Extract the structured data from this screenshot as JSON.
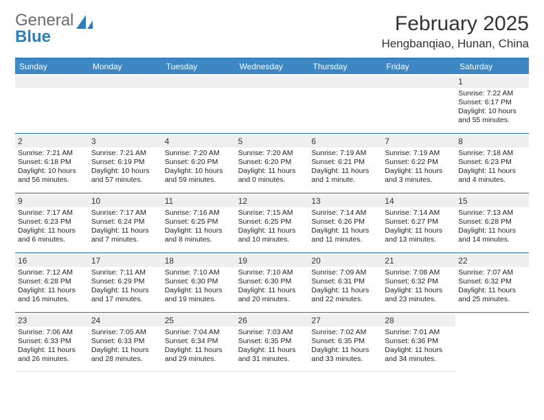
{
  "brand": {
    "name1": "General",
    "name2": "Blue"
  },
  "title": "February 2025",
  "location": "Hengbanqiao, Hunan, China",
  "colors": {
    "header_bar": "#3d87c4",
    "accent": "#2f7ebc",
    "daynum_bg": "#efefef",
    "text": "#222222"
  },
  "weekdays": [
    "Sunday",
    "Monday",
    "Tuesday",
    "Wednesday",
    "Thursday",
    "Friday",
    "Saturday"
  ],
  "calendar": {
    "first_weekday_index": 6,
    "days": [
      {
        "n": 1,
        "sunrise": "7:22 AM",
        "sunset": "6:17 PM",
        "daylight": "10 hours and 55 minutes."
      },
      {
        "n": 2,
        "sunrise": "7:21 AM",
        "sunset": "6:18 PM",
        "daylight": "10 hours and 56 minutes."
      },
      {
        "n": 3,
        "sunrise": "7:21 AM",
        "sunset": "6:19 PM",
        "daylight": "10 hours and 57 minutes."
      },
      {
        "n": 4,
        "sunrise": "7:20 AM",
        "sunset": "6:20 PM",
        "daylight": "10 hours and 59 minutes."
      },
      {
        "n": 5,
        "sunrise": "7:20 AM",
        "sunset": "6:20 PM",
        "daylight": "11 hours and 0 minutes."
      },
      {
        "n": 6,
        "sunrise": "7:19 AM",
        "sunset": "6:21 PM",
        "daylight": "11 hours and 1 minute."
      },
      {
        "n": 7,
        "sunrise": "7:19 AM",
        "sunset": "6:22 PM",
        "daylight": "11 hours and 3 minutes."
      },
      {
        "n": 8,
        "sunrise": "7:18 AM",
        "sunset": "6:23 PM",
        "daylight": "11 hours and 4 minutes."
      },
      {
        "n": 9,
        "sunrise": "7:17 AM",
        "sunset": "6:23 PM",
        "daylight": "11 hours and 6 minutes."
      },
      {
        "n": 10,
        "sunrise": "7:17 AM",
        "sunset": "6:24 PM",
        "daylight": "11 hours and 7 minutes."
      },
      {
        "n": 11,
        "sunrise": "7:16 AM",
        "sunset": "6:25 PM",
        "daylight": "11 hours and 8 minutes."
      },
      {
        "n": 12,
        "sunrise": "7:15 AM",
        "sunset": "6:25 PM",
        "daylight": "11 hours and 10 minutes."
      },
      {
        "n": 13,
        "sunrise": "7:14 AM",
        "sunset": "6:26 PM",
        "daylight": "11 hours and 11 minutes."
      },
      {
        "n": 14,
        "sunrise": "7:14 AM",
        "sunset": "6:27 PM",
        "daylight": "11 hours and 13 minutes."
      },
      {
        "n": 15,
        "sunrise": "7:13 AM",
        "sunset": "6:28 PM",
        "daylight": "11 hours and 14 minutes."
      },
      {
        "n": 16,
        "sunrise": "7:12 AM",
        "sunset": "6:28 PM",
        "daylight": "11 hours and 16 minutes."
      },
      {
        "n": 17,
        "sunrise": "7:11 AM",
        "sunset": "6:29 PM",
        "daylight": "11 hours and 17 minutes."
      },
      {
        "n": 18,
        "sunrise": "7:10 AM",
        "sunset": "6:30 PM",
        "daylight": "11 hours and 19 minutes."
      },
      {
        "n": 19,
        "sunrise": "7:10 AM",
        "sunset": "6:30 PM",
        "daylight": "11 hours and 20 minutes."
      },
      {
        "n": 20,
        "sunrise": "7:09 AM",
        "sunset": "6:31 PM",
        "daylight": "11 hours and 22 minutes."
      },
      {
        "n": 21,
        "sunrise": "7:08 AM",
        "sunset": "6:32 PM",
        "daylight": "11 hours and 23 minutes."
      },
      {
        "n": 22,
        "sunrise": "7:07 AM",
        "sunset": "6:32 PM",
        "daylight": "11 hours and 25 minutes."
      },
      {
        "n": 23,
        "sunrise": "7:06 AM",
        "sunset": "6:33 PM",
        "daylight": "11 hours and 26 minutes."
      },
      {
        "n": 24,
        "sunrise": "7:05 AM",
        "sunset": "6:33 PM",
        "daylight": "11 hours and 28 minutes."
      },
      {
        "n": 25,
        "sunrise": "7:04 AM",
        "sunset": "6:34 PM",
        "daylight": "11 hours and 29 minutes."
      },
      {
        "n": 26,
        "sunrise": "7:03 AM",
        "sunset": "6:35 PM",
        "daylight": "11 hours and 31 minutes."
      },
      {
        "n": 27,
        "sunrise": "7:02 AM",
        "sunset": "6:35 PM",
        "daylight": "11 hours and 33 minutes."
      },
      {
        "n": 28,
        "sunrise": "7:01 AM",
        "sunset": "6:36 PM",
        "daylight": "11 hours and 34 minutes."
      }
    ]
  },
  "labels": {
    "sunrise_prefix": "Sunrise: ",
    "sunset_prefix": "Sunset: ",
    "daylight_prefix": "Daylight: "
  }
}
